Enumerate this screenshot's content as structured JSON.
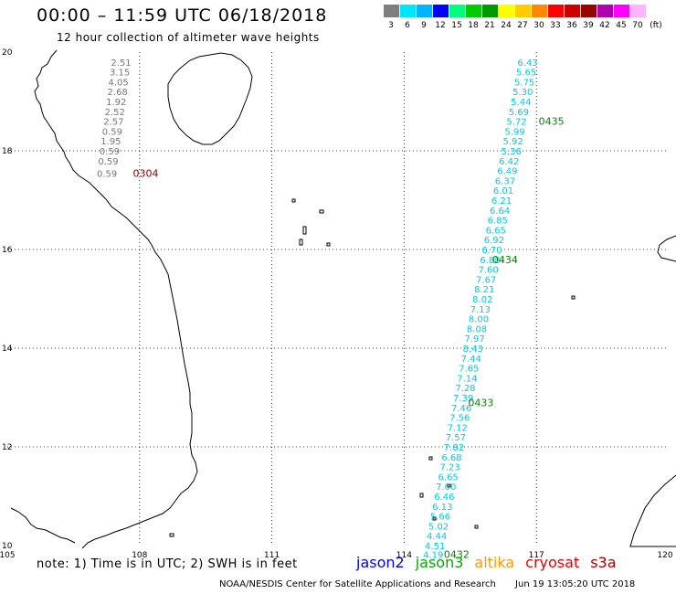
{
  "header": {
    "title": "00:00 – 11:59 UTC 06/18/2018",
    "subtitle": "12 hour collection of altimeter wave heights"
  },
  "scale": {
    "unit": "(ft)",
    "bins": [
      {
        "label": "3",
        "color": "#7f7f7f"
      },
      {
        "label": "6",
        "color": "#00e5ff"
      },
      {
        "label": "9",
        "color": "#00b4ff"
      },
      {
        "label": "12",
        "color": "#0000ff"
      },
      {
        "label": "15",
        "color": "#00ff7f"
      },
      {
        "label": "18",
        "color": "#00cc00"
      },
      {
        "label": "21",
        "color": "#009900"
      },
      {
        "label": "24",
        "color": "#ffff00"
      },
      {
        "label": "27",
        "color": "#ffcc00"
      },
      {
        "label": "30",
        "color": "#ff8800"
      },
      {
        "label": "33",
        "color": "#ff0000"
      },
      {
        "label": "36",
        "color": "#cc0000"
      },
      {
        "label": "39",
        "color": "#990000"
      },
      {
        "label": "42",
        "color": "#b000b0"
      },
      {
        "label": "45",
        "color": "#ff00ff"
      },
      {
        "label": "70",
        "color": "#ffb4ff"
      }
    ]
  },
  "axes": {
    "lat_labels": [
      "20",
      "18",
      "16",
      "14",
      "12",
      "10"
    ],
    "lon_labels": [
      "105",
      "108",
      "111",
      "114",
      "117",
      "120"
    ]
  },
  "chart_data": {
    "type": "scatter",
    "xlim": [
      105,
      120
    ],
    "ylim": [
      10,
      20
    ],
    "x_unit": "degrees E",
    "y_unit": "degrees N",
    "grid": true,
    "tracks": [
      {
        "satellite": "jason2",
        "color": "#00ccdd",
        "points": [
          {
            "lon": 116.8,
            "lat": 19.8,
            "swh": 6.43
          },
          {
            "lon": 116.77,
            "lat": 19.6,
            "swh": 5.65
          },
          {
            "lon": 116.73,
            "lat": 19.4,
            "swh": 5.75
          },
          {
            "lon": 116.69,
            "lat": 19.2,
            "swh": 5.3
          },
          {
            "lon": 116.65,
            "lat": 19.0,
            "swh": 5.44
          },
          {
            "lon": 116.6,
            "lat": 18.8,
            "swh": 5.69
          },
          {
            "lon": 116.55,
            "lat": 18.6,
            "swh": 5.72
          },
          {
            "lon": 116.51,
            "lat": 18.4,
            "swh": 5.99
          },
          {
            "lon": 116.47,
            "lat": 18.2,
            "swh": 5.92
          },
          {
            "lon": 116.43,
            "lat": 18.0,
            "swh": 5.36
          },
          {
            "lon": 116.38,
            "lat": 17.8,
            "swh": 6.42
          },
          {
            "lon": 116.34,
            "lat": 17.6,
            "swh": 6.49
          },
          {
            "lon": 116.29,
            "lat": 17.4,
            "swh": 6.37
          },
          {
            "lon": 116.25,
            "lat": 17.2,
            "swh": 6.01
          },
          {
            "lon": 116.21,
            "lat": 17.0,
            "swh": 6.21
          },
          {
            "lon": 116.17,
            "lat": 16.8,
            "swh": 6.64
          },
          {
            "lon": 116.12,
            "lat": 16.6,
            "swh": 6.85
          },
          {
            "lon": 116.08,
            "lat": 16.4,
            "swh": 6.65
          },
          {
            "lon": 116.04,
            "lat": 16.2,
            "swh": 6.92
          },
          {
            "lon": 115.99,
            "lat": 16.0,
            "swh": 6.7
          },
          {
            "lon": 115.95,
            "lat": 15.8,
            "swh": 6.88
          },
          {
            "lon": 115.91,
            "lat": 15.6,
            "swh": 7.6
          },
          {
            "lon": 115.86,
            "lat": 15.4,
            "swh": 7.67
          },
          {
            "lon": 115.82,
            "lat": 15.2,
            "swh": 8.21
          },
          {
            "lon": 115.78,
            "lat": 15.0,
            "swh": 8.02
          },
          {
            "lon": 115.73,
            "lat": 14.8,
            "swh": 7.13
          },
          {
            "lon": 115.69,
            "lat": 14.6,
            "swh": 8.0
          },
          {
            "lon": 115.65,
            "lat": 14.4,
            "swh": 8.08
          },
          {
            "lon": 115.6,
            "lat": 14.2,
            "swh": 7.97
          },
          {
            "lon": 115.56,
            "lat": 14.0,
            "swh": 8.43
          },
          {
            "lon": 115.52,
            "lat": 13.8,
            "swh": 7.44
          },
          {
            "lon": 115.47,
            "lat": 13.6,
            "swh": 7.65
          },
          {
            "lon": 115.43,
            "lat": 13.4,
            "swh": 7.14
          },
          {
            "lon": 115.39,
            "lat": 13.2,
            "swh": 7.28
          },
          {
            "lon": 115.34,
            "lat": 13.0,
            "swh": 7.39
          },
          {
            "lon": 115.3,
            "lat": 12.8,
            "swh": 7.46
          },
          {
            "lon": 115.26,
            "lat": 12.6,
            "swh": 7.56
          },
          {
            "lon": 115.21,
            "lat": 12.4,
            "swh": 7.12
          },
          {
            "lon": 115.17,
            "lat": 12.2,
            "swh": 7.57
          },
          {
            "lon": 115.13,
            "lat": 12.0,
            "swh": 7.82
          },
          {
            "lon": 115.08,
            "lat": 11.8,
            "swh": 6.68
          },
          {
            "lon": 115.04,
            "lat": 11.6,
            "swh": 7.23
          },
          {
            "lon": 115.0,
            "lat": 11.4,
            "swh": 6.65
          },
          {
            "lon": 114.95,
            "lat": 11.2,
            "swh": 7.0
          },
          {
            "lon": 114.91,
            "lat": 11.0,
            "swh": 6.46
          },
          {
            "lon": 114.87,
            "lat": 10.8,
            "swh": 6.13
          },
          {
            "lon": 114.82,
            "lat": 10.6,
            "swh": 5.66
          },
          {
            "lon": 114.78,
            "lat": 10.4,
            "swh": 5.02
          },
          {
            "lon": 114.74,
            "lat": 10.2,
            "swh": 4.44
          },
          {
            "lon": 114.7,
            "lat": 10.0,
            "swh": 4.51
          },
          {
            "lon": 114.66,
            "lat": 9.82,
            "swh": 4.19
          }
        ]
      },
      {
        "satellite": "cryosat",
        "color": "#777777",
        "points": [
          {
            "lon": 107.58,
            "lat": 19.8,
            "swh": 2.51
          },
          {
            "lon": 107.55,
            "lat": 19.6,
            "swh": 3.15
          },
          {
            "lon": 107.52,
            "lat": 19.4,
            "swh": 4.05
          },
          {
            "lon": 107.5,
            "lat": 19.2,
            "swh": 2.68
          },
          {
            "lon": 107.47,
            "lat": 19.0,
            "swh": 1.92
          },
          {
            "lon": 107.44,
            "lat": 18.8,
            "swh": 2.52
          },
          {
            "lon": 107.41,
            "lat": 18.6,
            "swh": 2.57
          },
          {
            "lon": 107.38,
            "lat": 18.4,
            "swh": 0.59
          },
          {
            "lon": 107.35,
            "lat": 18.2,
            "swh": 1.95
          },
          {
            "lon": 107.32,
            "lat": 18.0,
            "swh": 0.59
          },
          {
            "lon": 107.29,
            "lat": 17.8,
            "swh": 0.59
          },
          {
            "lon": 107.26,
            "lat": 17.55,
            "swh": 0.59
          }
        ]
      }
    ],
    "time_markers": [
      {
        "label": "0435",
        "lon": 117.05,
        "lat": 18.6,
        "color": "#008800"
      },
      {
        "label": "0434",
        "lon": 116.0,
        "lat": 15.8,
        "color": "#008800"
      },
      {
        "label": "0433",
        "lon": 115.45,
        "lat": 12.9,
        "color": "#008800"
      },
      {
        "label": "0432",
        "lon": 114.9,
        "lat": 9.82,
        "color": "#008800"
      },
      {
        "label": "0304",
        "lon": 107.85,
        "lat": 17.55,
        "color": "#880000"
      }
    ]
  },
  "footer": {
    "note": "note: 1) Time is in UTC; 2) SWH is in feet",
    "satellites": [
      {
        "name": "jason2",
        "color": "#0000ee"
      },
      {
        "name": "jason3",
        "color": "#00aa00"
      },
      {
        "name": "altika",
        "color": "#ff9900"
      },
      {
        "name": "cryosat",
        "color": "#ee0000"
      },
      {
        "name": "s3a",
        "color": "#aa0000"
      }
    ],
    "credit_org": "NOAA/NESDIS Center for Satellite Applications and Research",
    "credit_time": "Jun 19 13:05:20 UTC 2018"
  }
}
